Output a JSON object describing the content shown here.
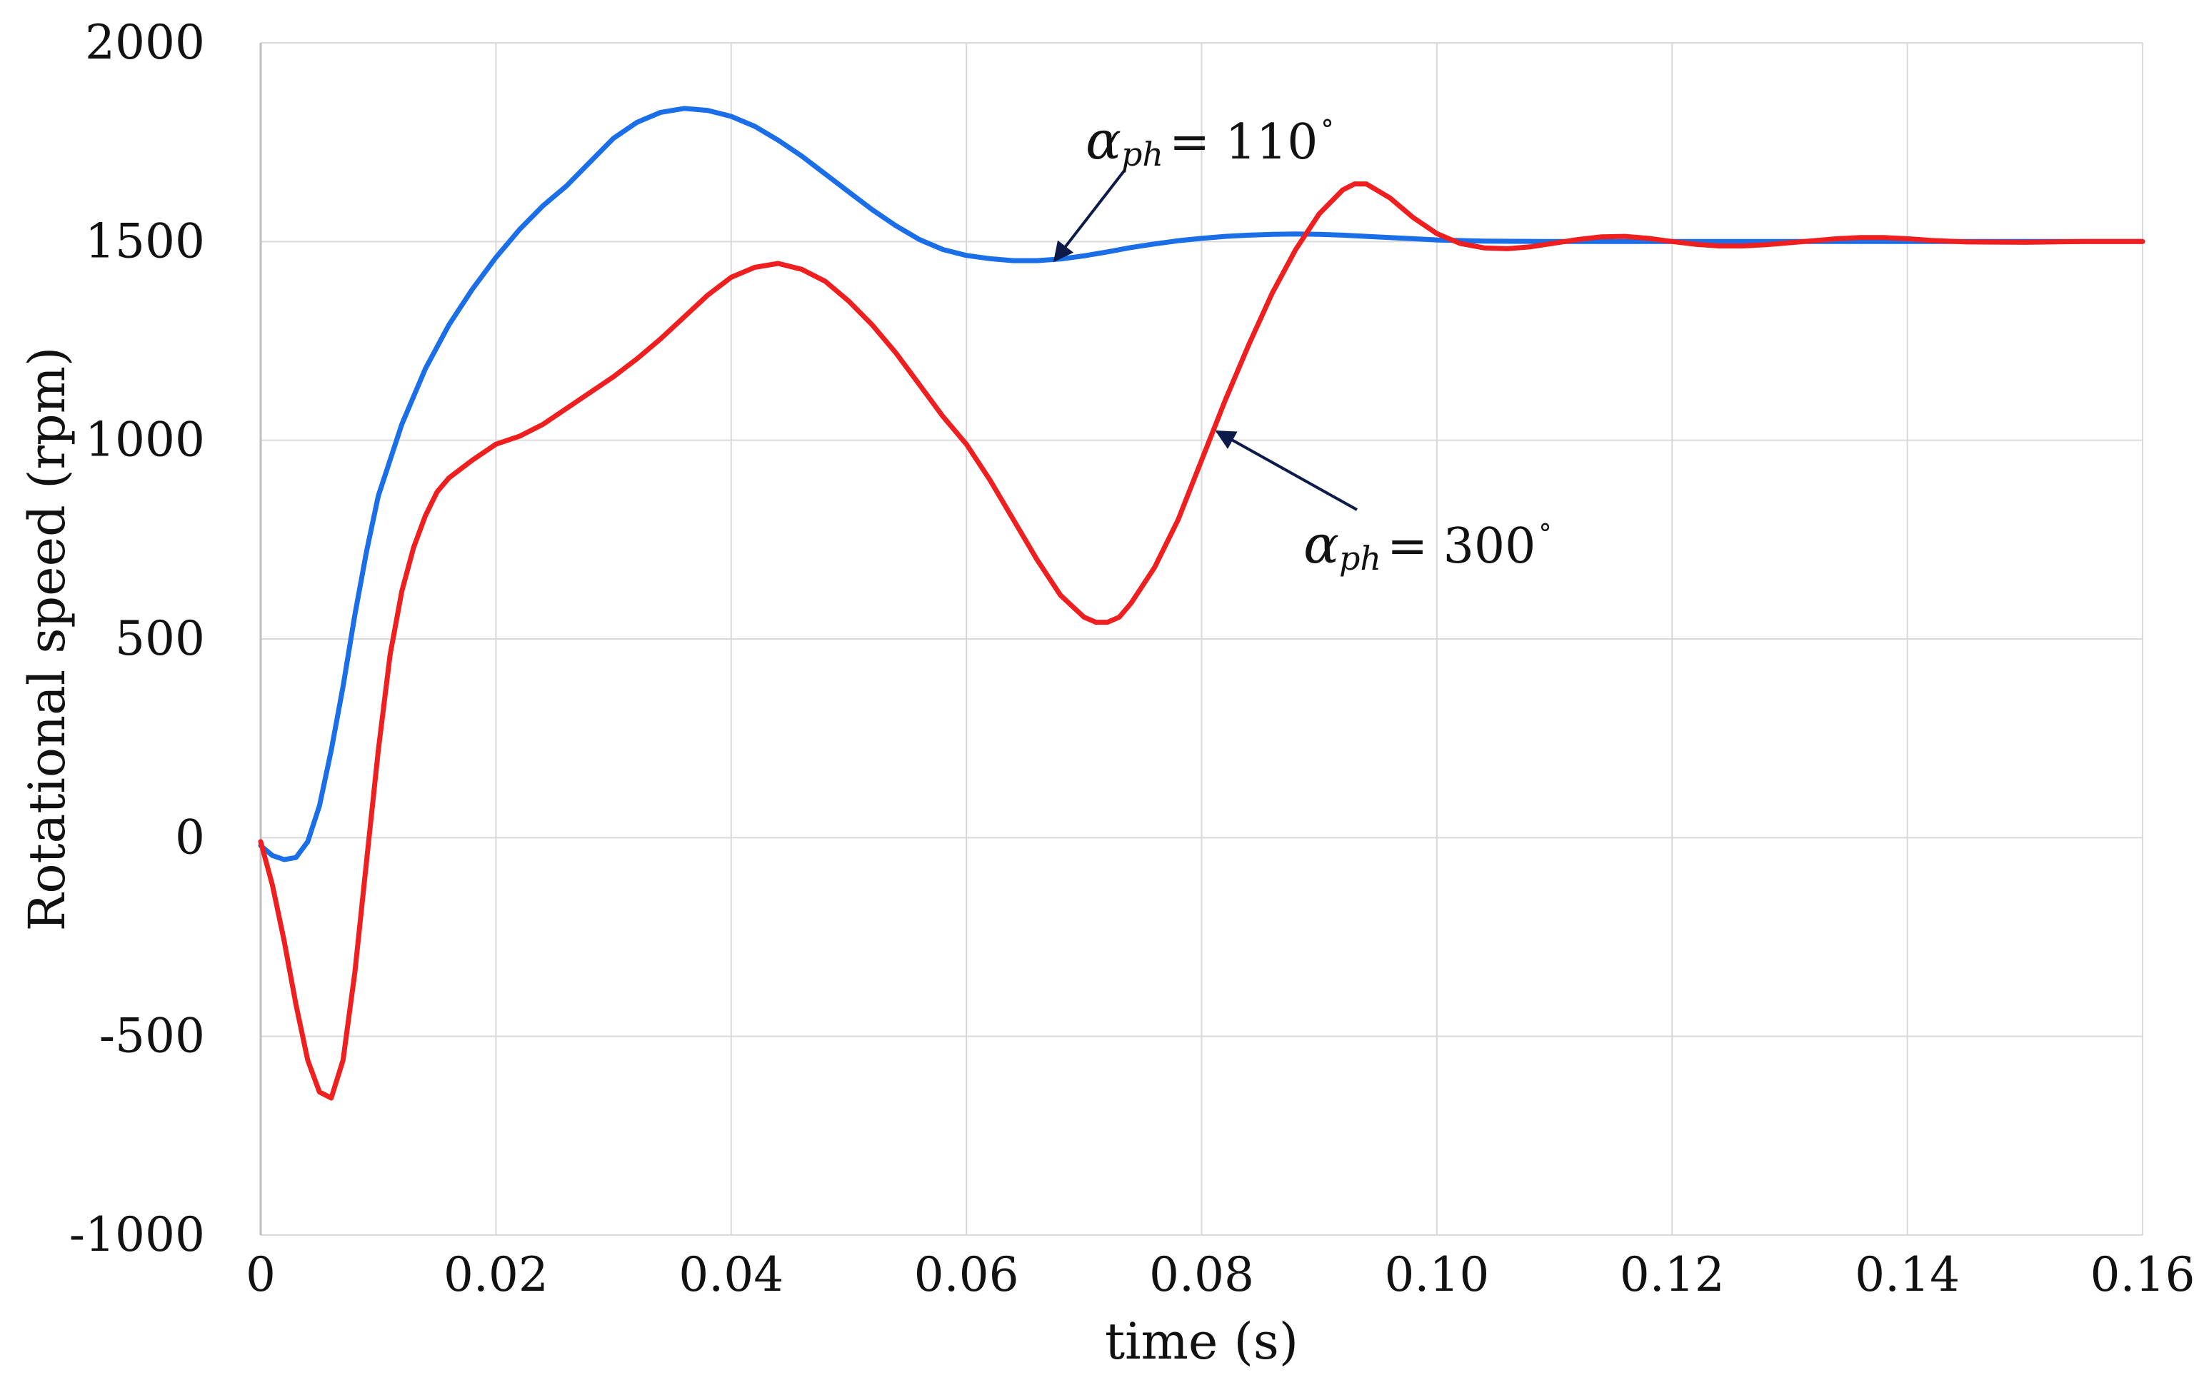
{
  "chart_data": {
    "type": "line",
    "title": "",
    "xlabel": "time (s)",
    "ylabel": "Rotational speed (rpm)",
    "xlim": [
      0,
      0.16
    ],
    "ylim": [
      -1000,
      2000
    ],
    "x_ticks": [
      "0",
      "0.02",
      "0.04",
      "0.06",
      "0.08",
      "0.10",
      "0.12",
      "0.14",
      "0.16"
    ],
    "y_ticks": [
      "2000",
      "1500",
      "1000",
      "500",
      "0",
      "-500",
      "-1000"
    ],
    "grid": true,
    "series": [
      {
        "name": "αph = 110°",
        "color": "#1a6fe8",
        "points": [
          [
            0,
            -20
          ],
          [
            0.001,
            -45
          ],
          [
            0.002,
            -55
          ],
          [
            0.003,
            -50
          ],
          [
            0.004,
            -10
          ],
          [
            0.005,
            80
          ],
          [
            0.006,
            220
          ],
          [
            0.007,
            380
          ],
          [
            0.008,
            560
          ],
          [
            0.009,
            720
          ],
          [
            0.01,
            860
          ],
          [
            0.012,
            1040
          ],
          [
            0.014,
            1180
          ],
          [
            0.016,
            1290
          ],
          [
            0.018,
            1380
          ],
          [
            0.02,
            1460
          ],
          [
            0.022,
            1530
          ],
          [
            0.024,
            1590
          ],
          [
            0.026,
            1640
          ],
          [
            0.028,
            1700
          ],
          [
            0.03,
            1760
          ],
          [
            0.032,
            1800
          ],
          [
            0.034,
            1825
          ],
          [
            0.036,
            1835
          ],
          [
            0.038,
            1830
          ],
          [
            0.04,
            1815
          ],
          [
            0.042,
            1790
          ],
          [
            0.044,
            1755
          ],
          [
            0.046,
            1715
          ],
          [
            0.048,
            1670
          ],
          [
            0.05,
            1625
          ],
          [
            0.052,
            1580
          ],
          [
            0.054,
            1540
          ],
          [
            0.056,
            1505
          ],
          [
            0.058,
            1480
          ],
          [
            0.06,
            1465
          ],
          [
            0.062,
            1457
          ],
          [
            0.064,
            1452
          ],
          [
            0.066,
            1452
          ],
          [
            0.068,
            1456
          ],
          [
            0.07,
            1464
          ],
          [
            0.072,
            1474
          ],
          [
            0.074,
            1485
          ],
          [
            0.076,
            1494
          ],
          [
            0.078,
            1502
          ],
          [
            0.08,
            1508
          ],
          [
            0.082,
            1513
          ],
          [
            0.084,
            1516
          ],
          [
            0.086,
            1518
          ],
          [
            0.088,
            1519
          ],
          [
            0.09,
            1518
          ],
          [
            0.092,
            1516
          ],
          [
            0.094,
            1513
          ],
          [
            0.096,
            1510
          ],
          [
            0.098,
            1507
          ],
          [
            0.1,
            1504
          ],
          [
            0.104,
            1501
          ],
          [
            0.11,
            1500
          ],
          [
            0.12,
            1500
          ],
          [
            0.13,
            1500
          ],
          [
            0.14,
            1500
          ],
          [
            0.15,
            1500
          ],
          [
            0.16,
            1500
          ]
        ]
      },
      {
        "name": "αph = 300°",
        "color": "#f01f1f",
        "points": [
          [
            0,
            -10
          ],
          [
            0.001,
            -120
          ],
          [
            0.002,
            -260
          ],
          [
            0.003,
            -420
          ],
          [
            0.004,
            -560
          ],
          [
            0.005,
            -640
          ],
          [
            0.006,
            -655
          ],
          [
            0.007,
            -560
          ],
          [
            0.008,
            -340
          ],
          [
            0.009,
            -60
          ],
          [
            0.01,
            220
          ],
          [
            0.011,
            460
          ],
          [
            0.012,
            620
          ],
          [
            0.013,
            730
          ],
          [
            0.014,
            810
          ],
          [
            0.015,
            870
          ],
          [
            0.016,
            905
          ],
          [
            0.018,
            950
          ],
          [
            0.02,
            990
          ],
          [
            0.022,
            1010
          ],
          [
            0.024,
            1040
          ],
          [
            0.026,
            1080
          ],
          [
            0.028,
            1120
          ],
          [
            0.03,
            1160
          ],
          [
            0.032,
            1205
          ],
          [
            0.034,
            1255
          ],
          [
            0.036,
            1310
          ],
          [
            0.038,
            1365
          ],
          [
            0.04,
            1410
          ],
          [
            0.042,
            1435
          ],
          [
            0.044,
            1445
          ],
          [
            0.046,
            1430
          ],
          [
            0.048,
            1400
          ],
          [
            0.05,
            1350
          ],
          [
            0.052,
            1290
          ],
          [
            0.054,
            1220
          ],
          [
            0.056,
            1140
          ],
          [
            0.058,
            1060
          ],
          [
            0.06,
            990
          ],
          [
            0.062,
            900
          ],
          [
            0.064,
            800
          ],
          [
            0.066,
            700
          ],
          [
            0.068,
            610
          ],
          [
            0.07,
            555
          ],
          [
            0.071,
            542
          ],
          [
            0.072,
            542
          ],
          [
            0.073,
            555
          ],
          [
            0.074,
            590
          ],
          [
            0.076,
            680
          ],
          [
            0.078,
            800
          ],
          [
            0.08,
            950
          ],
          [
            0.082,
            1100
          ],
          [
            0.084,
            1240
          ],
          [
            0.086,
            1370
          ],
          [
            0.088,
            1480
          ],
          [
            0.09,
            1570
          ],
          [
            0.092,
            1630
          ],
          [
            0.093,
            1645
          ],
          [
            0.094,
            1645
          ],
          [
            0.096,
            1610
          ],
          [
            0.098,
            1560
          ],
          [
            0.1,
            1520
          ],
          [
            0.102,
            1495
          ],
          [
            0.104,
            1484
          ],
          [
            0.106,
            1482
          ],
          [
            0.108,
            1487
          ],
          [
            0.11,
            1496
          ],
          [
            0.112,
            1505
          ],
          [
            0.114,
            1512
          ],
          [
            0.116,
            1513
          ],
          [
            0.118,
            1508
          ],
          [
            0.12,
            1500
          ],
          [
            0.122,
            1493
          ],
          [
            0.124,
            1489
          ],
          [
            0.126,
            1489
          ],
          [
            0.128,
            1492
          ],
          [
            0.13,
            1497
          ],
          [
            0.132,
            1502
          ],
          [
            0.134,
            1507
          ],
          [
            0.136,
            1510
          ],
          [
            0.138,
            1510
          ],
          [
            0.14,
            1507
          ],
          [
            0.142,
            1503
          ],
          [
            0.145,
            1499
          ],
          [
            0.15,
            1498
          ],
          [
            0.155,
            1500
          ],
          [
            0.16,
            1500
          ]
        ]
      }
    ],
    "annotations": [
      {
        "name": "annotation-110",
        "greek": "α",
        "sub": "ph",
        "value": "= 110",
        "deg": "°",
        "points_to": [
          0.0675,
          1452
        ]
      },
      {
        "name": "annotation-300",
        "greek": "α",
        "sub": "ph",
        "value": "= 300",
        "deg": "°",
        "points_to": [
          0.0813,
          1022
        ]
      }
    ]
  }
}
